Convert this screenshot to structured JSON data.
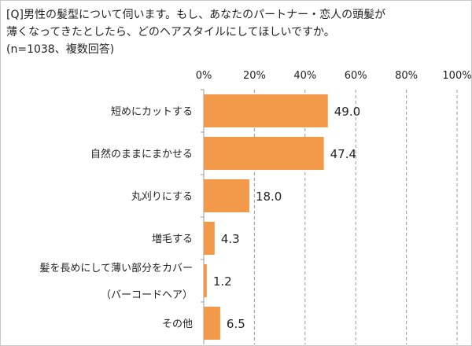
{
  "chart_data": {
    "type": "bar",
    "orientation": "horizontal",
    "title_lines": [
      "[Q]男性の髪型について伺います。もし、あなたのパートナー・恋人の頭髪が",
      "薄くなってきたとしたら、どのヘアスタイルにしてほしいですか。",
      "(n=1038、複数回答)"
    ],
    "categories": [
      [
        "短めにカットする"
      ],
      [
        "自然のままにまかせる"
      ],
      [
        "丸刈りにする"
      ],
      [
        "増毛する"
      ],
      [
        "髪を長めにして薄い部分をカバー",
        "（バーコードヘア）"
      ],
      [
        "その他"
      ]
    ],
    "values": [
      49.0,
      47.4,
      18.0,
      4.3,
      1.2,
      6.5
    ],
    "value_labels": [
      "49.0",
      "47.4",
      "18.0",
      "4.3",
      "1.2",
      "6.5"
    ],
    "xlim": [
      0,
      100
    ],
    "x_ticks": [
      "0%",
      "20%",
      "40%",
      "60%",
      "80%",
      "100%"
    ],
    "grid": "vertical dashed",
    "bar_color": "#f39a4a",
    "xlabel": "",
    "ylabel": ""
  }
}
